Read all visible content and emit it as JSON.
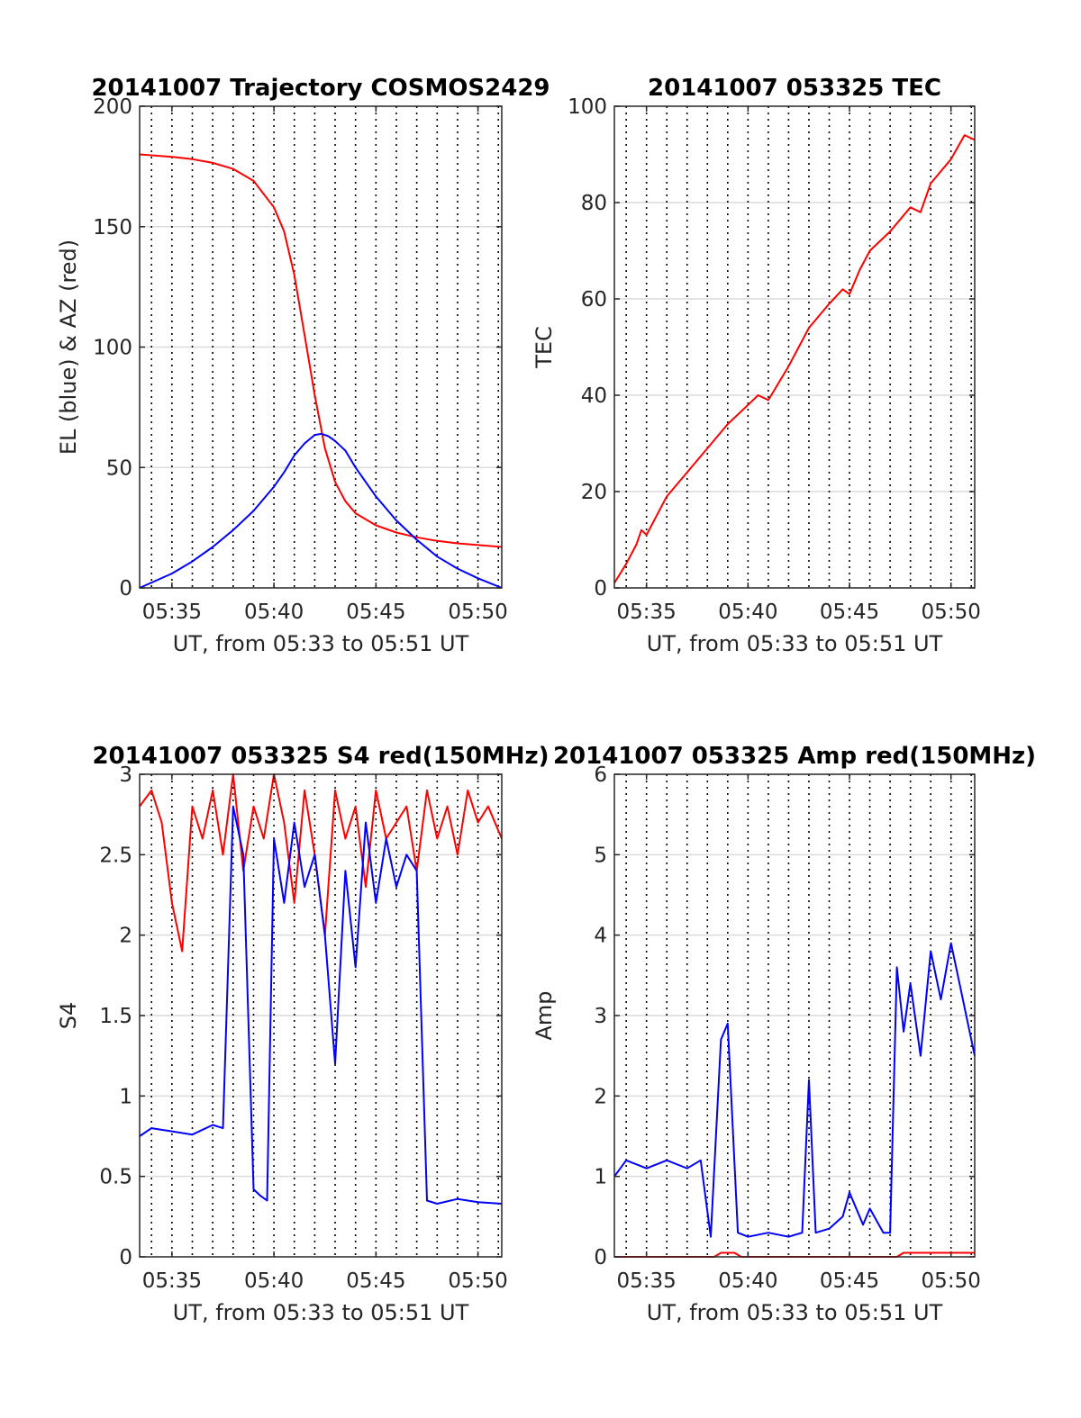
{
  "colors": {
    "red": "#ff0000",
    "blue": "#0000ff",
    "grid": "#dcdcdc",
    "axis": "#262626"
  },
  "chart_data": [
    {
      "type": "line",
      "title": "20141007 Trajectory COSMOS2429",
      "xlabel": "UT, from 05:33 to 05:51 UT",
      "ylabel": "EL (blue) & AZ (red)",
      "xlim": [
        "05:33:25",
        "05:51:10"
      ],
      "ylim": [
        0,
        200
      ],
      "xticks": [
        "05:35",
        "05:40",
        "05:45",
        "05:50"
      ],
      "yticks": [
        0,
        50,
        100,
        150,
        200
      ],
      "grid": true,
      "series": [
        {
          "color": "#ff0000",
          "x": [
            "05:33:25",
            "05:35:00",
            "05:36:00",
            "05:37:00",
            "05:38:00",
            "05:39:00",
            "05:40:00",
            "05:40:30",
            "05:41:00",
            "05:41:30",
            "05:42:00",
            "05:42:30",
            "05:43:00",
            "05:43:30",
            "05:44:00",
            "05:45:00",
            "05:46:00",
            "05:47:00",
            "05:48:00",
            "05:49:00",
            "05:50:00",
            "05:51:10"
          ],
          "y": [
            180,
            179,
            178,
            176.5,
            174,
            169,
            158,
            148,
            130,
            105,
            80,
            58,
            44,
            36,
            31,
            26,
            23,
            21,
            19.5,
            18.5,
            17.8,
            17
          ]
        },
        {
          "color": "#0000ff",
          "x": [
            "05:33:25",
            "05:35:00",
            "05:36:00",
            "05:37:00",
            "05:38:00",
            "05:39:00",
            "05:40:00",
            "05:40:30",
            "05:41:00",
            "05:41:30",
            "05:42:00",
            "05:42:20",
            "05:42:40",
            "05:43:00",
            "05:43:30",
            "05:44:00",
            "05:45:00",
            "05:46:00",
            "05:47:00",
            "05:48:00",
            "05:49:00",
            "05:50:00",
            "05:51:10"
          ],
          "y": [
            0,
            6,
            11,
            17,
            24,
            32,
            42,
            48,
            55,
            60,
            63.5,
            64,
            63,
            61,
            57,
            50,
            38,
            28,
            20,
            13,
            8,
            4,
            0
          ]
        }
      ]
    },
    {
      "type": "line",
      "title": "20141007 053325 TEC",
      "xlabel": "UT, from 05:33 to 05:51 UT",
      "ylabel": "TEC",
      "xlim": [
        "05:33:25",
        "05:51:10"
      ],
      "ylim": [
        0,
        100
      ],
      "xticks": [
        "05:35",
        "05:40",
        "05:45",
        "05:50"
      ],
      "yticks": [
        0,
        20,
        40,
        60,
        80,
        100
      ],
      "grid": true,
      "series": [
        {
          "color": "#ff0000",
          "x": [
            "05:33:25",
            "05:34:00",
            "05:34:30",
            "05:34:45",
            "05:35:00",
            "05:35:30",
            "05:36:00",
            "05:37:00",
            "05:38:00",
            "05:39:00",
            "05:40:00",
            "05:40:30",
            "05:41:00",
            "05:42:00",
            "05:43:00",
            "05:44:00",
            "05:44:40",
            "05:45:00",
            "05:45:30",
            "05:46:00",
            "05:47:00",
            "05:48:00",
            "05:48:30",
            "05:49:00",
            "05:50:00",
            "05:50:40",
            "05:51:10"
          ],
          "y": [
            1,
            5,
            9,
            12,
            11,
            15,
            19,
            24,
            29,
            34,
            38,
            40,
            39,
            46,
            54,
            59,
            62,
            61,
            66,
            70,
            74,
            79,
            78,
            84,
            89,
            94,
            93
          ]
        }
      ]
    },
    {
      "type": "line",
      "title": "20141007 053325 S4 red(150MHz)",
      "xlabel": "UT, from 05:33 to 05:51 UT",
      "ylabel": "S4",
      "xlim": [
        "05:33:25",
        "05:51:10"
      ],
      "ylim": [
        0,
        3
      ],
      "xticks": [
        "05:35",
        "05:40",
        "05:45",
        "05:50"
      ],
      "yticks": [
        0,
        0.5,
        1,
        1.5,
        2,
        2.5,
        3
      ],
      "grid": true,
      "series": [
        {
          "color": "#ff0000",
          "x": [
            "05:33:25",
            "05:34:00",
            "05:34:30",
            "05:35:00",
            "05:35:30",
            "05:36:00",
            "05:36:30",
            "05:37:00",
            "05:37:30",
            "05:38:00",
            "05:38:30",
            "05:39:00",
            "05:39:30",
            "05:40:00",
            "05:40:30",
            "05:41:00",
            "05:41:30",
            "05:42:00",
            "05:42:30",
            "05:43:00",
            "05:43:30",
            "05:44:00",
            "05:44:30",
            "05:45:00",
            "05:45:30",
            "05:46:00",
            "05:46:30",
            "05:47:00",
            "05:47:30",
            "05:48:00",
            "05:48:30",
            "05:49:00",
            "05:49:30",
            "05:50:00",
            "05:50:30",
            "05:51:10"
          ],
          "y": [
            2.8,
            2.9,
            2.7,
            2.2,
            1.9,
            2.8,
            2.6,
            2.9,
            2.5,
            3,
            2.4,
            2.8,
            2.6,
            3,
            2.7,
            2.2,
            2.9,
            2.5,
            2.0,
            2.9,
            2.6,
            2.8,
            2.3,
            2.9,
            2.6,
            2.7,
            2.8,
            2.4,
            2.9,
            2.6,
            2.8,
            2.5,
            2.9,
            2.7,
            2.8,
            2.6
          ]
        },
        {
          "color": "#0000ff",
          "x": [
            "05:33:25",
            "05:34:00",
            "05:35:00",
            "05:36:00",
            "05:37:00",
            "05:37:30",
            "05:38:00",
            "05:38:30",
            "05:39:00",
            "05:39:20",
            "05:39:40",
            "05:40:00",
            "05:40:30",
            "05:41:00",
            "05:41:30",
            "05:42:00",
            "05:42:30",
            "05:43:00",
            "05:43:30",
            "05:44:00",
            "05:44:30",
            "05:45:00",
            "05:45:30",
            "05:46:00",
            "05:46:30",
            "05:47:00",
            "05:47:30",
            "05:48:00",
            "05:49:00",
            "05:50:00",
            "05:51:10"
          ],
          "y": [
            0.75,
            0.8,
            0.78,
            0.76,
            0.82,
            0.8,
            2.8,
            2.5,
            0.42,
            0.38,
            0.35,
            2.6,
            2.2,
            2.7,
            2.3,
            2.5,
            2.0,
            1.2,
            2.4,
            1.8,
            2.7,
            2.2,
            2.6,
            2.3,
            2.5,
            2.4,
            0.35,
            0.33,
            0.36,
            0.34,
            0.33
          ]
        }
      ]
    },
    {
      "type": "line",
      "title": "20141007 053325 Amp red(150MHz)",
      "xlabel": "UT, from 05:33 to 05:51 UT",
      "ylabel": "Amp",
      "xlim": [
        "05:33:25",
        "05:51:10"
      ],
      "ylim": [
        0,
        6
      ],
      "xticks": [
        "05:35",
        "05:40",
        "05:45",
        "05:50"
      ],
      "yticks": [
        0,
        1,
        2,
        3,
        4,
        5,
        6
      ],
      "grid": true,
      "series": [
        {
          "color": "#0000ff",
          "x": [
            "05:33:25",
            "05:34:00",
            "05:35:00",
            "05:36:00",
            "05:37:00",
            "05:37:40",
            "05:38:10",
            "05:38:40",
            "05:39:00",
            "05:39:30",
            "05:40:00",
            "05:41:00",
            "05:42:00",
            "05:42:40",
            "05:43:00",
            "05:43:20",
            "05:44:00",
            "05:44:40",
            "05:45:00",
            "05:45:40",
            "05:46:00",
            "05:46:40",
            "05:47:00",
            "05:47:20",
            "05:47:40",
            "05:48:00",
            "05:48:30",
            "05:49:00",
            "05:49:30",
            "05:50:00",
            "05:50:30",
            "05:51:10"
          ],
          "y": [
            1.0,
            1.2,
            1.1,
            1.2,
            1.1,
            1.2,
            0.25,
            2.7,
            2.9,
            0.3,
            0.25,
            0.3,
            0.25,
            0.3,
            2.2,
            0.3,
            0.35,
            0.5,
            0.8,
            0.4,
            0.6,
            0.3,
            0.3,
            3.6,
            2.8,
            3.4,
            2.5,
            3.8,
            3.2,
            3.9,
            3.3,
            2.5
          ]
        },
        {
          "color": "#ff0000",
          "x": [
            "05:33:25",
            "05:38:20",
            "05:38:40",
            "05:39:20",
            "05:39:40",
            "05:47:20",
            "05:47:40",
            "05:51:10"
          ],
          "y": [
            0,
            0,
            0.05,
            0.05,
            0,
            0,
            0.05,
            0.05
          ]
        }
      ]
    }
  ]
}
